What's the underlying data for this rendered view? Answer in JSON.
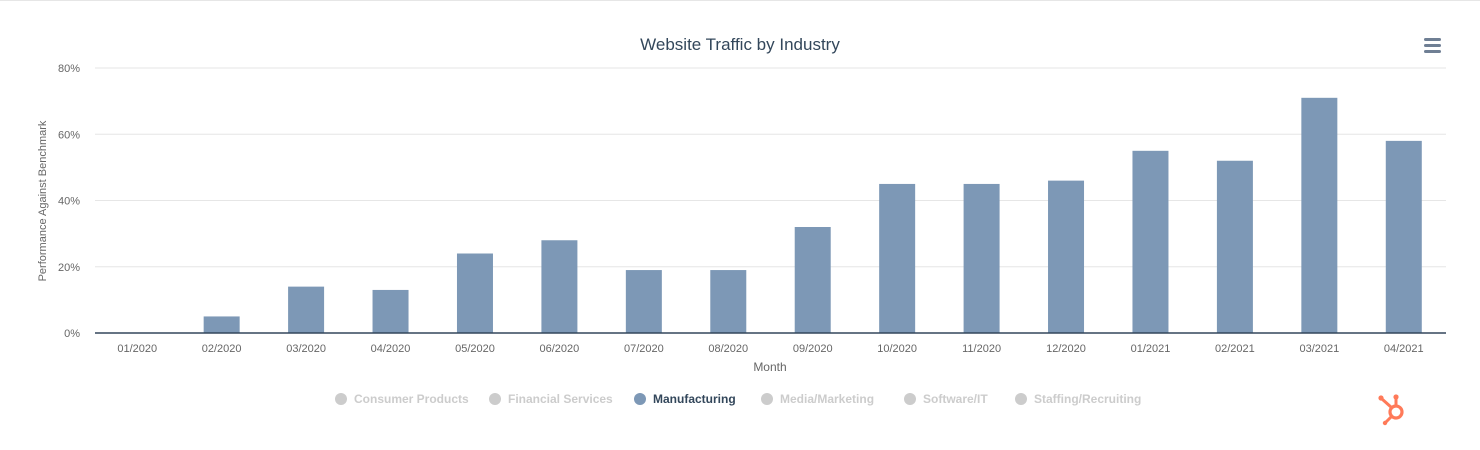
{
  "colors": {
    "bar": "#7d98b6",
    "inactive": "#cccccc",
    "active_text": "#33475b",
    "brand": "#ff7a59",
    "grid": "#e6e6e6",
    "axis": "#33475b"
  },
  "menu": {
    "icon": "hamburger-menu-icon"
  },
  "legend": {
    "items": [
      {
        "label": "Consumer Products",
        "active": false
      },
      {
        "label": "Financial Services",
        "active": false
      },
      {
        "label": "Manufacturing",
        "active": true
      },
      {
        "label": "Media/Marketing",
        "active": false
      },
      {
        "label": "Software/IT",
        "active": false
      },
      {
        "label": "Staffing/Recruiting",
        "active": false
      }
    ]
  },
  "brand": {
    "icon": "hubspot-logo-icon"
  },
  "chart_data": {
    "type": "bar",
    "title": "Website Traffic by Industry",
    "xlabel": "Month",
    "ylabel": "Performance Against Benchmark",
    "categories": [
      "01/2020",
      "02/2020",
      "03/2020",
      "04/2020",
      "05/2020",
      "06/2020",
      "07/2020",
      "08/2020",
      "09/2020",
      "10/2020",
      "11/2020",
      "12/2020",
      "01/2021",
      "02/2021",
      "03/2021",
      "04/2021"
    ],
    "series": [
      {
        "name": "Manufacturing",
        "values": [
          0,
          5,
          14,
          13,
          24,
          28,
          19,
          19,
          32,
          45,
          45,
          46,
          55,
          52,
          71,
          58
        ]
      }
    ],
    "ylim": [
      0,
      80
    ],
    "yticks": [
      0,
      20,
      40,
      60,
      80
    ],
    "ytick_labels": [
      "0%",
      "20%",
      "40%",
      "60%",
      "80%"
    ],
    "grid": true,
    "legend_position": "bottom-center"
  }
}
